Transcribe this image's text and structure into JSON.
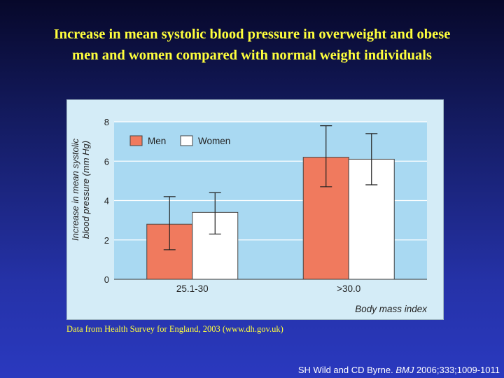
{
  "slide": {
    "title_line1": "Increase in mean systolic blood pressure in overweight and obese",
    "title_line2": "men and women compared with normal weight individuals",
    "source_note": "Data from Health Survey for England, 2003 (www.dh.gov.uk)",
    "citation_authors": "SH Wild and CD Byrne.",
    "citation_journal": "BMJ",
    "citation_ref": "2006;333;1009-1011"
  },
  "colors": {
    "men": "#f07a5e",
    "women": "#ffffff",
    "plot_band": "#a9d9f2",
    "panel": "#d4ecf7"
  },
  "chart_data": {
    "type": "bar",
    "categories": [
      "25.1-30",
      ">30.0"
    ],
    "series": [
      {
        "name": "Men",
        "values": [
          2.8,
          6.2
        ],
        "error_low": [
          1.5,
          4.7
        ],
        "error_high": [
          4.2,
          7.8
        ]
      },
      {
        "name": "Women",
        "values": [
          3.4,
          6.1
        ],
        "error_low": [
          2.3,
          4.8
        ],
        "error_high": [
          4.4,
          7.4
        ]
      }
    ],
    "title": "",
    "xlabel": "Body mass index",
    "ylabel_line1": "Increase in mean systolic",
    "ylabel_line2": "blood pressure (mm Hg)",
    "ylim": [
      0,
      8
    ],
    "yticks": [
      0,
      2,
      4,
      6,
      8
    ],
    "grid": true,
    "legend_position": "top-left"
  }
}
